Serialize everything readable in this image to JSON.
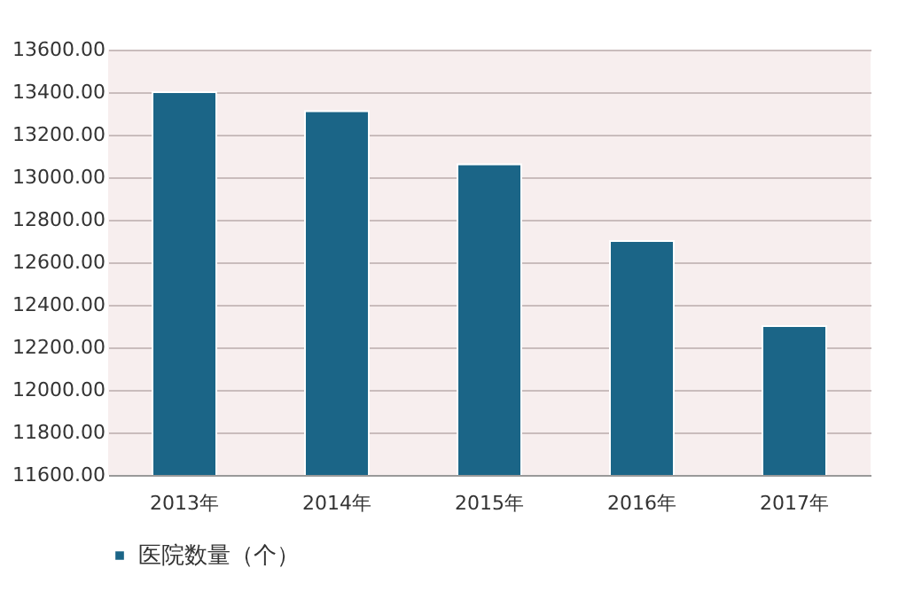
{
  "chart_data": {
    "type": "bar",
    "categories": [
      "2013年",
      "2014年",
      "2015年",
      "2016年",
      "2017年"
    ],
    "series": [
      {
        "name": "医院数量（个）",
        "color": "#1b6587",
        "values": [
          13400,
          13310,
          13060,
          12700,
          12300
        ]
      }
    ],
    "ylim": [
      11600,
      13600
    ],
    "yticks": [
      {
        "value": 11600,
        "label": "11600.00"
      },
      {
        "value": 11800,
        "label": "11800.00"
      },
      {
        "value": 12000,
        "label": "12000.00"
      },
      {
        "value": 12200,
        "label": "12200.00"
      },
      {
        "value": 12400,
        "label": "12400.00"
      },
      {
        "value": 12600,
        "label": "12600.00"
      },
      {
        "value": 12800,
        "label": "12800.00"
      },
      {
        "value": 13000,
        "label": "13000.00"
      },
      {
        "value": 13200,
        "label": "13200.00"
      },
      {
        "value": 13400,
        "label": "13400.00"
      },
      {
        "value": 13600,
        "label": "13600.00"
      }
    ],
    "grid": "y",
    "legend": "bottom"
  }
}
